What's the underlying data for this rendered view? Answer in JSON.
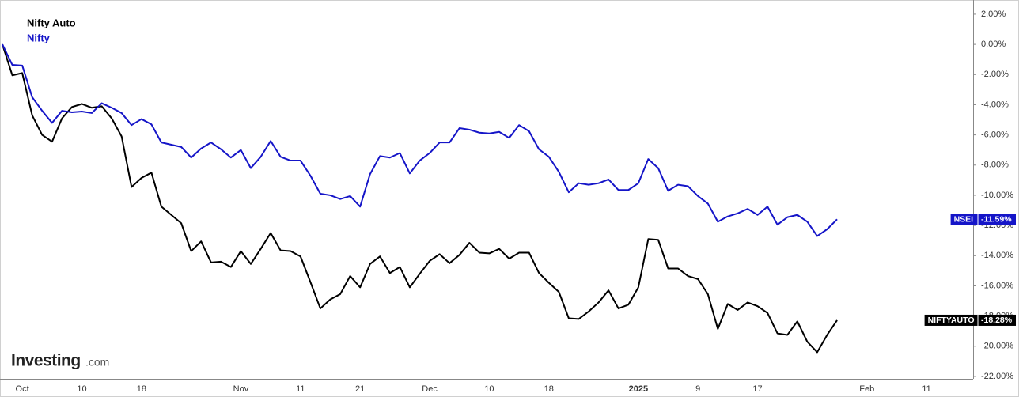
{
  "chart_data": {
    "type": "line",
    "logo": "Investing",
    "logo_suffix": ".com",
    "categories": [
      null,
      null,
      "Oct",
      null,
      null,
      null,
      null,
      null,
      "10",
      null,
      null,
      null,
      null,
      null,
      "18",
      null,
      null,
      null,
      null,
      null,
      null,
      null,
      null,
      null,
      "Nov",
      null,
      null,
      null,
      null,
      null,
      "11",
      null,
      null,
      null,
      null,
      null,
      "21",
      null,
      null,
      null,
      null,
      null,
      null,
      "Dec",
      null,
      null,
      null,
      null,
      null,
      "10",
      null,
      null,
      null,
      null,
      null,
      "18",
      null,
      null,
      null,
      null,
      null,
      null,
      null,
      null,
      "2025",
      null,
      null,
      null,
      null,
      null,
      "9",
      null,
      null,
      null,
      null,
      null,
      "17",
      null,
      null,
      null,
      null,
      null,
      null,
      null,
      null,
      null,
      null,
      "Feb",
      null,
      null,
      null,
      null,
      null,
      "11"
    ],
    "ylim": [
      -22.16,
      2.94
    ],
    "yticks": [
      {
        "value": 2,
        "label": "2.00%"
      },
      {
        "value": 0,
        "label": "0.00%"
      },
      {
        "value": -2,
        "label": "-2.00%"
      },
      {
        "value": -4,
        "label": "-4.00%"
      },
      {
        "value": -6,
        "label": "-6.00%"
      },
      {
        "value": -8,
        "label": "-8.00%"
      },
      {
        "value": -10,
        "label": "-10.00%"
      },
      {
        "value": -12,
        "label": "-12.00%"
      },
      {
        "value": -14,
        "label": "-14.00%"
      },
      {
        "value": -16,
        "label": "-16.00%"
      },
      {
        "value": -18,
        "label": "-18.00%"
      },
      {
        "value": -20,
        "label": "-20.00%"
      },
      {
        "value": -22,
        "label": "-22.00%"
      }
    ],
    "grid": false,
    "legend": "top-left",
    "series": [
      {
        "name": "Nifty Auto",
        "ticker": "NIFTYAUTO",
        "color": "#000000",
        "values": [
          0,
          -2.05,
          -1.9,
          -4.7,
          -6.0,
          -6.45,
          -4.9,
          -4.15,
          -3.95,
          -4.2,
          -4.1,
          -4.9,
          -6.1,
          -9.45,
          -8.85,
          -8.5,
          -10.75,
          -11.3,
          -11.85,
          -13.7,
          -13.05,
          -14.45,
          -14.4,
          -14.75,
          -13.7,
          -14.55,
          -13.55,
          -12.5,
          -13.65,
          -13.7,
          -14.05,
          -15.75,
          -17.5,
          -16.9,
          -16.55,
          -15.35,
          -16.1,
          -14.55,
          -14.05,
          -15.15,
          -14.75,
          -16.1,
          -15.2,
          -14.35,
          -13.9,
          -14.5,
          -13.95,
          -13.15,
          -13.8,
          -13.85,
          -13.55,
          -14.2,
          -13.8,
          -13.8,
          -15.15,
          -15.8,
          -16.4,
          -18.15,
          -18.2,
          -17.7,
          -17.1,
          -16.3,
          -17.5,
          -17.25,
          -16.1,
          -12.9,
          -12.95,
          -14.85,
          -14.85,
          -15.35,
          -15.55,
          -16.55,
          -18.85,
          -17.2,
          -17.6,
          -17.1,
          -17.35,
          -17.8,
          -19.15,
          -19.25,
          -18.35,
          -19.7,
          -20.4,
          -19.25,
          -18.28,
          null,
          null,
          null,
          null,
          null,
          null,
          null,
          null,
          null
        ],
        "value_labels": [
          null,
          null,
          null,
          null,
          null,
          null,
          null,
          null,
          null,
          null,
          null,
          null,
          null,
          null,
          null,
          null,
          null,
          null,
          null,
          null,
          null,
          null,
          null,
          null,
          null,
          null,
          null,
          null,
          null,
          null,
          null,
          null,
          null,
          null,
          null,
          null,
          null,
          null,
          null,
          null,
          null,
          null,
          null,
          null,
          null,
          null,
          null,
          null,
          null,
          null,
          null,
          null,
          null,
          null,
          null,
          null,
          null,
          null,
          null,
          null,
          null,
          null,
          null,
          null,
          null,
          null,
          null,
          null,
          null,
          null,
          null,
          null,
          null,
          null,
          null,
          null,
          null,
          null,
          null,
          null,
          null,
          null,
          null,
          null,
          "-18.28%",
          null,
          null,
          null,
          null,
          null,
          null,
          null,
          null,
          null
        ]
      },
      {
        "name": "Nifty",
        "ticker": "NSEI",
        "color": "#1515c8",
        "values": [
          0,
          -1.36,
          -1.4,
          -3.5,
          -4.4,
          -5.2,
          -4.4,
          -4.5,
          -4.45,
          -4.55,
          -3.9,
          -4.2,
          -4.55,
          -5.35,
          -4.95,
          -5.3,
          -6.5,
          -6.65,
          -6.8,
          -7.5,
          -6.9,
          -6.5,
          -6.95,
          -7.5,
          -7.0,
          -8.2,
          -7.45,
          -6.4,
          -7.45,
          -7.7,
          -7.7,
          -8.7,
          -9.9,
          -10.0,
          -10.25,
          -10.05,
          -10.75,
          -8.6,
          -7.4,
          -7.5,
          -7.2,
          -8.55,
          -7.7,
          -7.2,
          -6.5,
          -6.5,
          -5.55,
          -5.65,
          -5.85,
          -5.9,
          -5.8,
          -6.2,
          -5.35,
          -5.75,
          -6.95,
          -7.45,
          -8.45,
          -9.8,
          -9.2,
          -9.3,
          -9.2,
          -8.95,
          -9.65,
          -9.65,
          -9.2,
          -7.6,
          -8.2,
          -9.7,
          -9.3,
          -9.4,
          -10.05,
          -10.55,
          -11.75,
          -11.4,
          -11.2,
          -10.9,
          -11.3,
          -10.75,
          -11.95,
          -11.45,
          -11.3,
          -11.75,
          -12.7,
          -12.25,
          -11.59,
          null,
          null,
          null,
          null,
          null,
          null,
          null,
          null,
          null
        ],
        "value_labels": [
          null,
          null,
          null,
          null,
          null,
          null,
          null,
          null,
          null,
          null,
          null,
          null,
          null,
          null,
          null,
          null,
          null,
          null,
          null,
          null,
          null,
          null,
          null,
          null,
          null,
          null,
          null,
          null,
          null,
          null,
          null,
          null,
          null,
          null,
          null,
          null,
          null,
          null,
          null,
          null,
          null,
          null,
          null,
          null,
          null,
          null,
          null,
          null,
          null,
          null,
          null,
          null,
          null,
          null,
          null,
          null,
          null,
          null,
          null,
          null,
          null,
          null,
          null,
          null,
          null,
          null,
          null,
          null,
          null,
          null,
          null,
          null,
          null,
          null,
          null,
          null,
          null,
          null,
          null,
          null,
          null,
          null,
          null,
          null,
          "-11.59%",
          null,
          null,
          null,
          null,
          null,
          null,
          null,
          null,
          null
        ]
      }
    ]
  }
}
